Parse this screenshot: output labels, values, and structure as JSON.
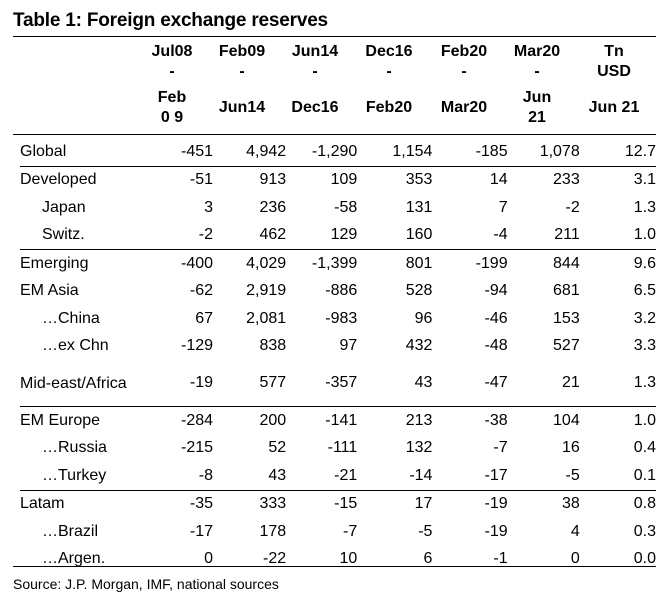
{
  "title": "Table 1: Foreign exchange reserves",
  "columns": [
    {
      "top": "Jul08",
      "dash": "-",
      "bottom": "Feb0 9"
    },
    {
      "top": "Feb09",
      "dash": "-",
      "bottom": "Jun14"
    },
    {
      "top": "Jun14",
      "dash": "-",
      "bottom": "Dec16"
    },
    {
      "top": "Dec16",
      "dash": "-",
      "bottom": "Feb20"
    },
    {
      "top": "Feb20",
      "dash": "-",
      "bottom": "Mar20"
    },
    {
      "top": "Mar20",
      "dash": "-",
      "bottom": "Jun 21"
    },
    {
      "top": "Tn USD",
      "dash": "",
      "bottom": "Jun 21"
    }
  ],
  "rows": [
    {
      "label": "Global",
      "values": [
        "-451",
        "4,942",
        "-1,290",
        "1,154",
        "-185",
        "1,078",
        "12.7"
      ]
    },
    {
      "label": "Developed",
      "values": [
        "-51",
        "913",
        "109",
        "353",
        "14",
        "233",
        "3.1"
      ]
    },
    {
      "label": "Japan",
      "values": [
        "3",
        "236",
        "-58",
        "131",
        "7",
        "-2",
        "1.3"
      ]
    },
    {
      "label": "Switz.",
      "values": [
        "-2",
        "462",
        "129",
        "160",
        "-4",
        "211",
        "1.0"
      ]
    },
    {
      "label": "Emerging",
      "values": [
        "-400",
        "4,029",
        "-1,399",
        "801",
        "-199",
        "844",
        "9.6"
      ]
    },
    {
      "label": "EM Asia",
      "values": [
        "-62",
        "2,919",
        "-886",
        "528",
        "-94",
        "681",
        "6.5"
      ]
    },
    {
      "label": "…China",
      "values": [
        "67",
        "2,081",
        "-983",
        "96",
        "-46",
        "153",
        "3.2"
      ]
    },
    {
      "label": "…ex Chn",
      "values": [
        "-129",
        "838",
        "97",
        "432",
        "-48",
        "527",
        "3.3"
      ]
    },
    {
      "label": "Mid-east/Africa",
      "values": [
        "-19",
        "577",
        "-357",
        "43",
        "-47",
        "21",
        "1.3"
      ]
    },
    {
      "label": "EM Europe",
      "values": [
        "-284",
        "200",
        "-141",
        "213",
        "-38",
        "104",
        "1.0"
      ]
    },
    {
      "label": "…Russia",
      "values": [
        "-215",
        "52",
        "-111",
        "132",
        "-7",
        "16",
        "0.4"
      ]
    },
    {
      "label": "…Turkey",
      "values": [
        "-8",
        "43",
        "-21",
        "-14",
        "-17",
        "-5",
        "0.1"
      ]
    },
    {
      "label": "Latam",
      "values": [
        "-35",
        "333",
        "-15",
        "17",
        "-19",
        "38",
        "0.8"
      ]
    },
    {
      "label": "…Brazil",
      "values": [
        "-17",
        "178",
        "-7",
        "-5",
        "-19",
        "4",
        "0.3"
      ]
    },
    {
      "label": "…Argen.",
      "values": [
        "0",
        "-22",
        "10",
        "6",
        "-1",
        "0",
        "0.0"
      ]
    }
  ],
  "source": "Source: J.P. Morgan, IMF, national sources"
}
